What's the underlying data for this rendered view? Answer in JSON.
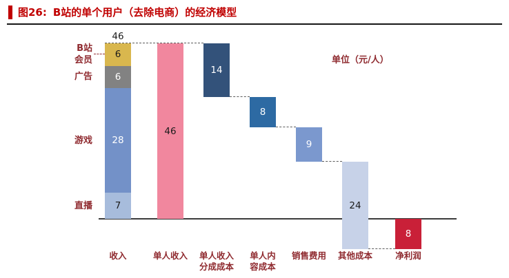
{
  "header": {
    "figure_label": "图26:",
    "title": "B站的单个用户（去除电商）的经济模型"
  },
  "chart_data": {
    "type": "waterfall",
    "title": "B站的单个用户（去除电商）的经济模型",
    "unit_label": "单位（元/人）",
    "ylim": [
      -9,
      47
    ],
    "baseline": 0,
    "stacked_bar": {
      "category": "收入",
      "label_lines": [
        "收入"
      ],
      "total": 46,
      "segments": [
        {
          "label": "直播",
          "side_label_lines": [
            "直播"
          ],
          "value": 7,
          "color": "#a7bcdc",
          "text_color": "#1a1a1a"
        },
        {
          "label": "游戏",
          "side_label_lines": [
            "游戏"
          ],
          "value": 28,
          "color": "#7391c8",
          "text_color": "#ffffff"
        },
        {
          "label": "广告",
          "side_label_lines": [
            "广告"
          ],
          "value": 6,
          "color": "#828282",
          "text_color": "#ffffff"
        },
        {
          "label": "B站会员",
          "side_label_lines": [
            "B站",
            "会员"
          ],
          "value": 6,
          "color": "#d9b74e",
          "text_color": "#1a1a1a",
          "leader": true
        }
      ]
    },
    "waterfall_bars": [
      {
        "category": "单人收入",
        "label_lines": [
          "单人收入"
        ],
        "value": 46,
        "from": 0,
        "to": 46,
        "color": "#f1879e",
        "text_color": "#1a1a1a"
      },
      {
        "category": "单人收入分成成本",
        "label_lines": [
          "单人收入",
          "分成成本"
        ],
        "value": 14,
        "from": 32,
        "to": 46,
        "color": "#33527a",
        "text_color": "#ffffff"
      },
      {
        "category": "单人内容成本",
        "label_lines": [
          "单人内",
          "容成本"
        ],
        "value": 8,
        "from": 24,
        "to": 32,
        "color": "#2d6aa3",
        "text_color": "#ffffff"
      },
      {
        "category": "销售费用",
        "label_lines": [
          "销售费用"
        ],
        "value": 9,
        "from": 15,
        "to": 24,
        "color": "#7b98ce",
        "text_color": "#ffffff"
      },
      {
        "category": "其他成本",
        "label_lines": [
          "其他成本"
        ],
        "value": 24,
        "from": -8,
        "to": 15,
        "color": "#c7d2e8",
        "text_color": "#1a1a1a"
      },
      {
        "category": "净利润",
        "label_lines": [
          "净利润"
        ],
        "value": 8,
        "from": -8,
        "to": 0,
        "color": "#c92038",
        "text_color": "#ffffff"
      }
    ],
    "x_axis_categories": [
      "收入",
      "单人收入",
      "单人收入分成成本",
      "单人内容成本",
      "销售费用",
      "其他成本",
      "净利润"
    ]
  }
}
